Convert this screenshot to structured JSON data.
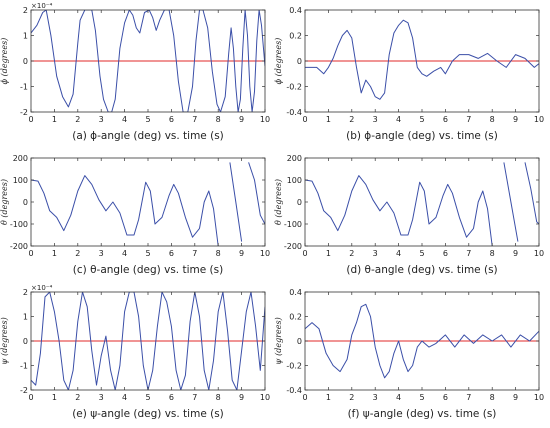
{
  "figure": {
    "captions": [
      "(a) ϕ-angle (deg) vs. time (s)",
      "(b) ϕ-angle (deg) vs. time (s)",
      "(c) θ-angle (deg) vs. time (s)",
      "(d) θ-angle (deg) vs. time (s)",
      "(e) ψ-angle (deg) vs. time (s)",
      "(f) ψ-angle (deg) vs. time (s)"
    ],
    "line_color": "#3b4fa8",
    "reference_line_color": "#e0282a"
  },
  "chart_data": [
    {
      "type": "line",
      "caption": "(a) ϕ-angle (deg) vs. time (s)",
      "ylabel": "ϕ (degrees)",
      "exponent_label": "×10⁻⁴",
      "xlim": [
        0,
        10
      ],
      "ylim": [
        -2,
        2
      ],
      "xticks": [
        0,
        1,
        2,
        3,
        4,
        5,
        6,
        7,
        8,
        9,
        10
      ],
      "yticks": [
        -2,
        -1,
        0,
        1,
        2
      ],
      "reference_line_y": 0,
      "series": [
        {
          "x": [
            0,
            0.25,
            0.5,
            0.65,
            0.85,
            1.1,
            1.35,
            1.6,
            1.8,
            2.0,
            2.1,
            2.3,
            2.6,
            2.75,
            2.95,
            3.1,
            3.3,
            3.45,
            3.6,
            3.8,
            4.0,
            4.2,
            4.35,
            4.5,
            4.65,
            4.85,
            5.05,
            5.2,
            5.35,
            5.5,
            5.7,
            5.9,
            6.1,
            6.3,
            6.5,
            6.7,
            6.9,
            7.05,
            7.2,
            7.35,
            7.55,
            7.75,
            7.95,
            8.1,
            8.3,
            8.45,
            8.55,
            8.65,
            8.75,
            8.85,
            8.95,
            9.05,
            9.15,
            9.25,
            9.35,
            9.45,
            9.55,
            9.65,
            9.75,
            9.85,
            10
          ],
          "y": [
            1.1,
            1.4,
            1.9,
            2.0,
            1.0,
            -0.6,
            -1.4,
            -1.8,
            -1.3,
            0.7,
            1.6,
            2.0,
            2.0,
            1.2,
            -0.6,
            -1.5,
            -2.0,
            -2.0,
            -1.5,
            0.5,
            1.5,
            2.0,
            1.8,
            1.3,
            1.1,
            1.9,
            2.0,
            1.7,
            1.2,
            1.6,
            2.0,
            2.0,
            1.0,
            -0.8,
            -2.0,
            -2.0,
            -1.0,
            0.8,
            2.0,
            2.0,
            1.3,
            -0.4,
            -1.7,
            -2.0,
            -1.4,
            0.3,
            1.3,
            0.5,
            -1.0,
            -2.0,
            -1.5,
            0.5,
            2.0,
            1.0,
            -1.0,
            -2.0,
            -1.2,
            0.8,
            2.0,
            1.4,
            -0.2
          ]
        }
      ]
    },
    {
      "type": "line",
      "caption": "(b) ϕ-angle (deg) vs. time (s)",
      "ylabel": "ϕ (degrees)",
      "xlim": [
        0,
        10
      ],
      "ylim": [
        -0.4,
        0.4
      ],
      "xticks": [
        0,
        1,
        2,
        3,
        4,
        5,
        6,
        7,
        8,
        9,
        10
      ],
      "yticks": [
        -0.4,
        -0.2,
        0,
        0.2,
        0.4
      ],
      "reference_line_y": 0,
      "series": [
        {
          "x": [
            0,
            0.5,
            0.8,
            1.0,
            1.2,
            1.4,
            1.6,
            1.8,
            2.0,
            2.2,
            2.4,
            2.6,
            2.8,
            3.0,
            3.2,
            3.4,
            3.6,
            3.8,
            4.0,
            4.2,
            4.4,
            4.6,
            4.8,
            5.0,
            5.2,
            5.5,
            5.8,
            6.0,
            6.3,
            6.6,
            7.0,
            7.4,
            7.8,
            8.2,
            8.6,
            9.0,
            9.4,
            9.8,
            10
          ],
          "y": [
            -0.05,
            -0.05,
            -0.1,
            -0.05,
            0.02,
            0.12,
            0.2,
            0.24,
            0.18,
            -0.05,
            -0.25,
            -0.15,
            -0.2,
            -0.28,
            -0.3,
            -0.25,
            0.05,
            0.22,
            0.28,
            0.32,
            0.3,
            0.18,
            -0.05,
            -0.1,
            -0.12,
            -0.08,
            -0.05,
            -0.1,
            0.0,
            0.05,
            0.05,
            0.02,
            0.06,
            0.0,
            -0.05,
            0.05,
            0.02,
            -0.05,
            -0.02
          ]
        }
      ]
    },
    {
      "type": "line",
      "caption": "(c) θ-angle (deg) vs. time (s)",
      "ylabel": "θ (degrees)",
      "xlim": [
        0,
        10
      ],
      "ylim": [
        -200,
        200
      ],
      "xticks": [
        0,
        1,
        2,
        3,
        4,
        5,
        6,
        7,
        8,
        9,
        10
      ],
      "yticks": [
        -200,
        -100,
        0,
        100,
        200
      ],
      "series": [
        {
          "x": [
            0,
            0.3,
            0.55,
            0.8,
            1.1,
            1.4,
            1.7,
            2.0,
            2.3,
            2.6,
            2.9,
            3.2,
            3.5,
            3.8,
            4.1,
            4.4,
            4.6,
            4.9,
            5.1,
            5.3,
            5.6,
            5.9,
            6.1,
            6.3,
            6.6,
            6.9,
            7.2,
            7.4,
            7.6,
            7.8,
            8.0
          ],
          "y": [
            100,
            95,
            40,
            -40,
            -70,
            -130,
            -60,
            50,
            120,
            80,
            10,
            -40,
            0,
            -50,
            -150,
            -150,
            -80,
            90,
            50,
            -100,
            -70,
            30,
            80,
            40,
            -70,
            -160,
            -120,
            0,
            50,
            -30,
            -200
          ]
        },
        {
          "x": [
            8.5,
            8.75,
            9.0
          ],
          "y": [
            180,
            0,
            -180
          ]
        },
        {
          "x": [
            9.3,
            9.55,
            9.8,
            10.0
          ],
          "y": [
            180,
            100,
            -60,
            -100
          ]
        }
      ]
    },
    {
      "type": "line",
      "caption": "(d) θ-angle (deg) vs. time (s)",
      "ylabel": "θ (degrees)",
      "xlim": [
        0,
        10
      ],
      "ylim": [
        -200,
        200
      ],
      "xticks": [
        0,
        1,
        2,
        3,
        4,
        5,
        6,
        7,
        8,
        9,
        10
      ],
      "yticks": [
        -200,
        -100,
        0,
        100,
        200
      ],
      "series": [
        {
          "x": [
            0,
            0.3,
            0.55,
            0.8,
            1.1,
            1.4,
            1.7,
            2.0,
            2.3,
            2.6,
            2.9,
            3.2,
            3.5,
            3.8,
            4.1,
            4.4,
            4.6,
            4.9,
            5.1,
            5.3,
            5.6,
            5.9,
            6.1,
            6.3,
            6.6,
            6.9,
            7.2,
            7.4,
            7.6,
            7.8,
            8.0
          ],
          "y": [
            100,
            95,
            40,
            -40,
            -70,
            -130,
            -60,
            50,
            120,
            80,
            10,
            -40,
            0,
            -50,
            -150,
            -150,
            -80,
            90,
            50,
            -100,
            -70,
            30,
            80,
            40,
            -70,
            -160,
            -120,
            0,
            50,
            -30,
            -200
          ]
        },
        {
          "x": [
            8.5,
            8.8,
            9.1
          ],
          "y": [
            180,
            0,
            -180
          ]
        },
        {
          "x": [
            9.4,
            9.65,
            9.9,
            10.0
          ],
          "y": [
            180,
            60,
            -90,
            -100
          ]
        }
      ]
    },
    {
      "type": "line",
      "caption": "(e) ψ-angle (deg) vs. time (s)",
      "ylabel": "ψ (degrees)",
      "exponent_label": "×10⁻⁴",
      "xlim": [
        0,
        10
      ],
      "ylim": [
        -2,
        2
      ],
      "xticks": [
        0,
        1,
        2,
        3,
        4,
        5,
        6,
        7,
        8,
        9,
        10
      ],
      "yticks": [
        -2,
        -1,
        0,
        1,
        2
      ],
      "reference_line_y": 0,
      "series": [
        {
          "x": [
            0,
            0.2,
            0.4,
            0.6,
            0.8,
            1.0,
            1.2,
            1.4,
            1.6,
            1.8,
            2.0,
            2.2,
            2.4,
            2.6,
            2.8,
            3.0,
            3.2,
            3.4,
            3.6,
            3.8,
            4.0,
            4.2,
            4.4,
            4.6,
            4.8,
            5.0,
            5.2,
            5.4,
            5.6,
            5.8,
            6.0,
            6.2,
            6.4,
            6.6,
            6.8,
            7.0,
            7.2,
            7.4,
            7.6,
            7.8,
            8.0,
            8.2,
            8.4,
            8.6,
            8.8,
            9.0,
            9.2,
            9.4,
            9.6,
            9.8,
            10
          ],
          "y": [
            -1.6,
            -1.8,
            -0.5,
            1.8,
            2.0,
            1.2,
            0.0,
            -1.6,
            -2.0,
            -1.2,
            0.8,
            2.0,
            1.4,
            -0.4,
            -1.8,
            -0.6,
            0.2,
            -1.2,
            -2.0,
            -1.0,
            1.2,
            2.0,
            2.0,
            1.0,
            -1.0,
            -2.0,
            -1.2,
            0.6,
            2.0,
            1.6,
            0.6,
            -1.2,
            -2.0,
            -1.4,
            0.8,
            2.0,
            1.0,
            -1.2,
            -2.0,
            -0.8,
            1.2,
            2.0,
            0.4,
            -1.6,
            -2.0,
            -0.4,
            1.2,
            2.0,
            0.6,
            -1.2,
            1.4
          ]
        }
      ]
    },
    {
      "type": "line",
      "caption": "(f) ψ-angle (deg) vs. time (s)",
      "ylabel": "ψ (degrees)",
      "xlim": [
        0,
        10
      ],
      "ylim": [
        -0.4,
        0.4
      ],
      "xticks": [
        0,
        1,
        2,
        3,
        4,
        5,
        6,
        7,
        8,
        9,
        10
      ],
      "yticks": [
        -0.4,
        -0.2,
        0,
        0.2,
        0.4
      ],
      "reference_line_y": 0,
      "series": [
        {
          "x": [
            0,
            0.3,
            0.6,
            0.9,
            1.2,
            1.5,
            1.8,
            2.0,
            2.2,
            2.4,
            2.6,
            2.8,
            3.0,
            3.2,
            3.4,
            3.6,
            3.8,
            4.0,
            4.2,
            4.4,
            4.6,
            4.8,
            5.0,
            5.3,
            5.6,
            6.0,
            6.4,
            6.8,
            7.2,
            7.6,
            8.0,
            8.4,
            8.8,
            9.2,
            9.6,
            10
          ],
          "y": [
            0.1,
            0.15,
            0.1,
            -0.1,
            -0.2,
            -0.25,
            -0.15,
            0.05,
            0.15,
            0.28,
            0.3,
            0.2,
            -0.05,
            -0.2,
            -0.3,
            -0.25,
            -0.1,
            0.0,
            -0.15,
            -0.25,
            -0.2,
            -0.05,
            0.0,
            -0.05,
            -0.02,
            0.05,
            -0.05,
            0.05,
            -0.02,
            0.05,
            0.0,
            0.05,
            -0.05,
            0.05,
            0.0,
            0.08
          ]
        }
      ]
    }
  ]
}
